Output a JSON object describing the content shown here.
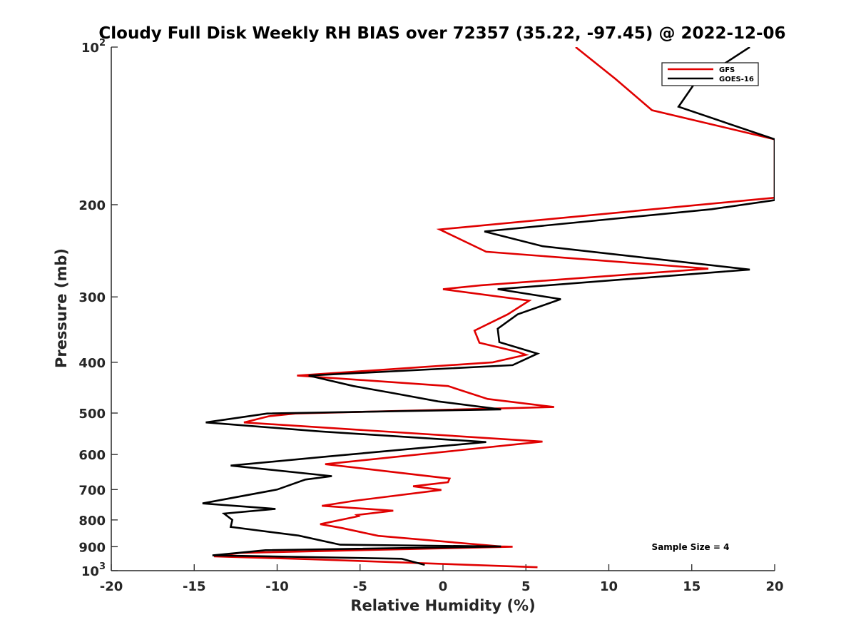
{
  "chart_data": {
    "type": "line",
    "title": "Cloudy Full Disk Weekly RH BIAS over 72357 (35.22, -97.45) @ 2022-12-06",
    "xlabel": "Relative Humidity (%)",
    "ylabel": "Pressure (mb)",
    "xlim": [
      -20,
      20
    ],
    "ylim": [
      100,
      1000
    ],
    "yscale": "log",
    "y_reversed": true,
    "grid": false,
    "legend_position": "top-right",
    "xticks": [
      -20,
      -15,
      -10,
      -5,
      0,
      5,
      10,
      15,
      20
    ],
    "xtick_labels": [
      "-20",
      "-15",
      "-10",
      "-5",
      "0",
      "5",
      "10",
      "15",
      "20"
    ],
    "yticks": [
      100,
      200,
      300,
      400,
      500,
      600,
      700,
      800,
      900,
      1000
    ],
    "ytick_labels": [
      {
        "base": "10",
        "exp": "2"
      },
      {
        "base": "200",
        "exp": ""
      },
      {
        "base": "300",
        "exp": ""
      },
      {
        "base": "400",
        "exp": ""
      },
      {
        "base": "500",
        "exp": ""
      },
      {
        "base": "600",
        "exp": ""
      },
      {
        "base": "700",
        "exp": ""
      },
      {
        "base": "800",
        "exp": ""
      },
      {
        "base": "900",
        "exp": ""
      },
      {
        "base": "10",
        "exp": "3"
      }
    ],
    "annotation": "Sample Size = 4",
    "series": [
      {
        "name": "GFS",
        "color": "#e00000",
        "points": [
          [
            8.0,
            100
          ],
          [
            10.4,
            115
          ],
          [
            12.6,
            132
          ],
          [
            20.0,
            150
          ],
          [
            20.0,
            194
          ],
          [
            -0.2,
            223
          ],
          [
            2.6,
            246
          ],
          [
            16.0,
            265
          ],
          [
            2.3,
            285
          ],
          [
            0.0,
            290
          ],
          [
            5.2,
            305
          ],
          [
            3.9,
            324
          ],
          [
            1.9,
            348
          ],
          [
            2.2,
            367
          ],
          [
            4.5,
            382
          ],
          [
            5.0,
            387
          ],
          [
            3.0,
            400
          ],
          [
            -8.8,
            424
          ],
          [
            0.3,
            444
          ],
          [
            2.7,
            470
          ],
          [
            6.7,
            487
          ],
          [
            -8.9,
            501
          ],
          [
            -10.5,
            507
          ],
          [
            -12.0,
            521
          ],
          [
            6.0,
            567
          ],
          [
            -7.1,
            626
          ],
          [
            0.4,
            667
          ],
          [
            0.3,
            678
          ],
          [
            -1.8,
            690
          ],
          [
            -0.1,
            701
          ],
          [
            -5.3,
            735
          ],
          [
            -7.3,
            752
          ],
          [
            -3.0,
            768
          ],
          [
            -5.2,
            783
          ],
          [
            -5.1,
            787
          ],
          [
            -7.4,
            815
          ],
          [
            -6.1,
            829
          ],
          [
            -3.9,
            858
          ],
          [
            3.5,
            899
          ],
          [
            4.2,
            900
          ],
          [
            -12.2,
            925
          ],
          [
            -13.8,
            939
          ],
          [
            -8.0,
            951
          ],
          [
            5.7,
            985
          ]
        ]
      },
      {
        "name": "GOES-16",
        "color": "#000000",
        "points": [
          [
            18.5,
            100
          ],
          [
            15.2,
            117
          ],
          [
            14.2,
            130
          ],
          [
            20.0,
            150
          ],
          [
            20.0,
            196
          ],
          [
            16.2,
            204
          ],
          [
            2.5,
            225
          ],
          [
            6.0,
            240
          ],
          [
            18.5,
            266
          ],
          [
            3.3,
            290
          ],
          [
            7.1,
            303
          ],
          [
            4.5,
            324
          ],
          [
            3.3,
            345
          ],
          [
            3.4,
            366
          ],
          [
            5.7,
            385
          ],
          [
            4.2,
            405
          ],
          [
            -8.1,
            424
          ],
          [
            -5.4,
            444
          ],
          [
            -3.0,
            458
          ],
          [
            -0.3,
            475
          ],
          [
            3.5,
            492
          ],
          [
            -10.6,
            501
          ],
          [
            -14.3,
            521
          ],
          [
            -7.4,
            542
          ],
          [
            2.6,
            568
          ],
          [
            -6.9,
            605
          ],
          [
            -12.8,
            630
          ],
          [
            -6.7,
            660
          ],
          [
            -8.3,
            670
          ],
          [
            -10.0,
            700
          ],
          [
            -14.5,
            744
          ],
          [
            -10.1,
            762
          ],
          [
            -13.2,
            778
          ],
          [
            -12.7,
            800
          ],
          [
            -12.8,
            825
          ],
          [
            -8.7,
            857
          ],
          [
            -6.2,
            892
          ],
          [
            3.5,
            899
          ],
          [
            -10.7,
            914
          ],
          [
            -13.9,
            935
          ],
          [
            -2.5,
            949
          ],
          [
            -1.1,
            975
          ]
        ]
      }
    ]
  }
}
